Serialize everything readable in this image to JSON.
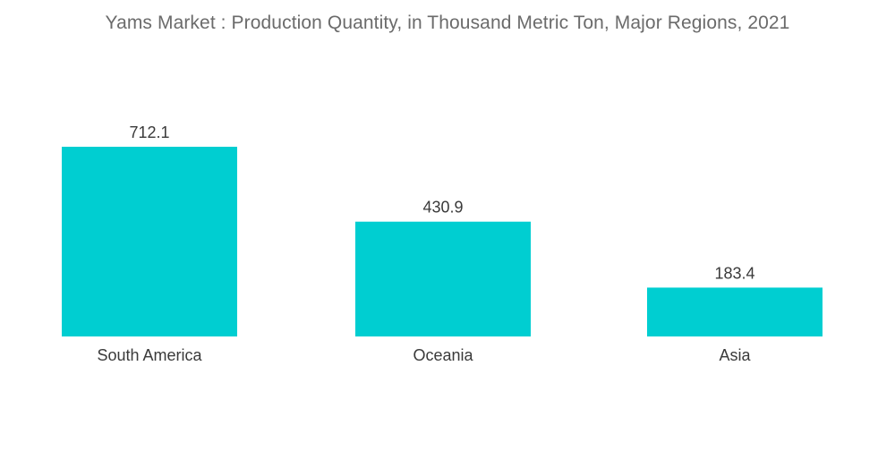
{
  "chart_data": {
    "type": "bar",
    "title": "Yams Market : Production Quantity, in Thousand Metric Ton, Major Regions, 2021",
    "categories": [
      "South America",
      "Oceania",
      "Asia"
    ],
    "values": [
      712.1,
      430.9,
      183.4
    ],
    "data_labels": [
      "712.1",
      "430.9",
      "183.4"
    ],
    "xlabel": "",
    "ylabel": "",
    "ylim": [
      0,
      712.1
    ],
    "grid": false,
    "legend": "none",
    "bar_color": "#00CED1"
  }
}
